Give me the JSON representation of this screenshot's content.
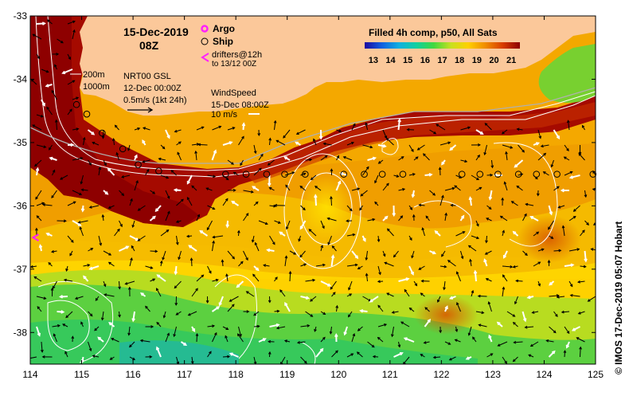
{
  "map": {
    "date": "15-Dec-2019",
    "time": "08Z",
    "product": "Filled 4h comp, p50, All Sats",
    "colorbar": {
      "ticks": [
        "13",
        "14",
        "15",
        "16",
        "17",
        "18",
        "19",
        "20",
        "21"
      ],
      "min": 12.5,
      "max": 21.5,
      "stops": [
        "#1a0aa0",
        "#1060e0",
        "#10b0e0",
        "#10d0a0",
        "#40d840",
        "#c8e020",
        "#ffd000",
        "#f08c00",
        "#d83c00",
        "#8c0000"
      ]
    },
    "legend": {
      "argo": "Argo",
      "ship": "Ship",
      "drifters_line1": "drifters@12h",
      "drifters_line2": "to 13/12 00Z",
      "isobath_200": "200m",
      "isobath_1000": "1000m",
      "gsl_line1": "NRT00 GSL",
      "gsl_line2": "12-Dec 00:00Z",
      "current_scale": "0.5m/s (1kt 24h)",
      "wind_title": "WindSpeed",
      "wind_time": "15-Dec 08:00Z",
      "wind_scale": "10 m/s"
    },
    "axes": {
      "x_ticks": [
        "114",
        "115",
        "116",
        "117",
        "118",
        "119",
        "120",
        "121",
        "122",
        "123",
        "124",
        "125"
      ],
      "y_ticks": [
        "-33",
        "-34",
        "-35",
        "-36",
        "-37",
        "-38"
      ],
      "lon_range": [
        114,
        125
      ],
      "lat_range": [
        -38.5,
        -33
      ]
    },
    "credit": "© IMOS 17-Dec-2019 05:07 Hobart",
    "colors": {
      "land": "#fbc89a",
      "argo": "#ff20ff",
      "drifter": "#ff20ff",
      "contour": "#ffffff"
    },
    "ship_track": [
      {
        "lon": 114.9,
        "lat": -34.4
      },
      {
        "lon": 115.1,
        "lat": -34.55
      },
      {
        "lon": 115.4,
        "lat": -34.85
      },
      {
        "lon": 115.8,
        "lat": -35.1
      },
      {
        "lon": 116.1,
        "lat": -35.35
      },
      {
        "lon": 116.5,
        "lat": -35.45
      },
      {
        "lon": 117.8,
        "lat": -35.5
      },
      {
        "lon": 118.2,
        "lat": -35.5
      },
      {
        "lon": 118.6,
        "lat": -35.5
      },
      {
        "lon": 118.95,
        "lat": -35.5
      },
      {
        "lon": 119.35,
        "lat": -35.5
      },
      {
        "lon": 120.1,
        "lat": -35.5
      },
      {
        "lon": 120.5,
        "lat": -35.5
      },
      {
        "lon": 120.85,
        "lat": -35.5
      },
      {
        "lon": 121.25,
        "lat": -35.5
      },
      {
        "lon": 122.4,
        "lat": -35.5
      },
      {
        "lon": 122.75,
        "lat": -35.5
      },
      {
        "lon": 123.1,
        "lat": -35.5
      },
      {
        "lon": 123.5,
        "lat": -35.5
      },
      {
        "lon": 123.85,
        "lat": -35.5
      },
      {
        "lon": 124.25,
        "lat": -35.5
      },
      {
        "lon": 124.95,
        "lat": -35.5
      }
    ],
    "argo_floats": [],
    "drifters": [
      {
        "lon": 114.1,
        "lat": -36.5
      }
    ]
  }
}
